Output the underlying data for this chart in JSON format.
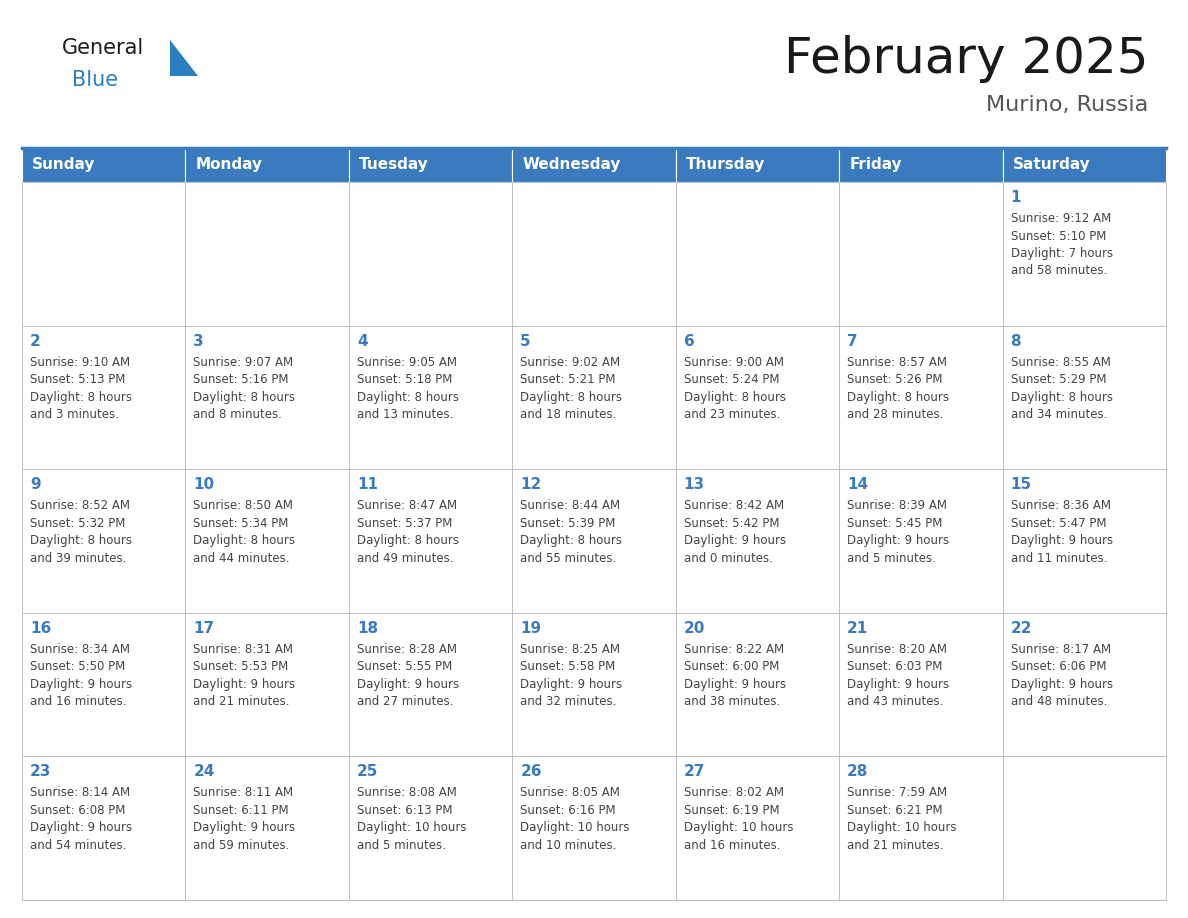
{
  "title": "February 2025",
  "subtitle": "Murino, Russia",
  "days_of_week": [
    "Sunday",
    "Monday",
    "Tuesday",
    "Wednesday",
    "Thursday",
    "Friday",
    "Saturday"
  ],
  "header_bg": "#3a7abf",
  "header_text": "#ffffff",
  "cell_bg": "#ffffff",
  "day_num_color": "#3a7abf",
  "text_color": "#444444",
  "border_color": "#bbbbbb",
  "title_color": "#1a1a1a",
  "subtitle_color": "#555555",
  "logo_general_color": "#1a1a1a",
  "logo_blue_color": "#2a7fc0",
  "calendar_data": [
    [
      {
        "day": null,
        "info": ""
      },
      {
        "day": null,
        "info": ""
      },
      {
        "day": null,
        "info": ""
      },
      {
        "day": null,
        "info": ""
      },
      {
        "day": null,
        "info": ""
      },
      {
        "day": null,
        "info": ""
      },
      {
        "day": 1,
        "info": "Sunrise: 9:12 AM\nSunset: 5:10 PM\nDaylight: 7 hours\nand 58 minutes."
      }
    ],
    [
      {
        "day": 2,
        "info": "Sunrise: 9:10 AM\nSunset: 5:13 PM\nDaylight: 8 hours\nand 3 minutes."
      },
      {
        "day": 3,
        "info": "Sunrise: 9:07 AM\nSunset: 5:16 PM\nDaylight: 8 hours\nand 8 minutes."
      },
      {
        "day": 4,
        "info": "Sunrise: 9:05 AM\nSunset: 5:18 PM\nDaylight: 8 hours\nand 13 minutes."
      },
      {
        "day": 5,
        "info": "Sunrise: 9:02 AM\nSunset: 5:21 PM\nDaylight: 8 hours\nand 18 minutes."
      },
      {
        "day": 6,
        "info": "Sunrise: 9:00 AM\nSunset: 5:24 PM\nDaylight: 8 hours\nand 23 minutes."
      },
      {
        "day": 7,
        "info": "Sunrise: 8:57 AM\nSunset: 5:26 PM\nDaylight: 8 hours\nand 28 minutes."
      },
      {
        "day": 8,
        "info": "Sunrise: 8:55 AM\nSunset: 5:29 PM\nDaylight: 8 hours\nand 34 minutes."
      }
    ],
    [
      {
        "day": 9,
        "info": "Sunrise: 8:52 AM\nSunset: 5:32 PM\nDaylight: 8 hours\nand 39 minutes."
      },
      {
        "day": 10,
        "info": "Sunrise: 8:50 AM\nSunset: 5:34 PM\nDaylight: 8 hours\nand 44 minutes."
      },
      {
        "day": 11,
        "info": "Sunrise: 8:47 AM\nSunset: 5:37 PM\nDaylight: 8 hours\nand 49 minutes."
      },
      {
        "day": 12,
        "info": "Sunrise: 8:44 AM\nSunset: 5:39 PM\nDaylight: 8 hours\nand 55 minutes."
      },
      {
        "day": 13,
        "info": "Sunrise: 8:42 AM\nSunset: 5:42 PM\nDaylight: 9 hours\nand 0 minutes."
      },
      {
        "day": 14,
        "info": "Sunrise: 8:39 AM\nSunset: 5:45 PM\nDaylight: 9 hours\nand 5 minutes."
      },
      {
        "day": 15,
        "info": "Sunrise: 8:36 AM\nSunset: 5:47 PM\nDaylight: 9 hours\nand 11 minutes."
      }
    ],
    [
      {
        "day": 16,
        "info": "Sunrise: 8:34 AM\nSunset: 5:50 PM\nDaylight: 9 hours\nand 16 minutes."
      },
      {
        "day": 17,
        "info": "Sunrise: 8:31 AM\nSunset: 5:53 PM\nDaylight: 9 hours\nand 21 minutes."
      },
      {
        "day": 18,
        "info": "Sunrise: 8:28 AM\nSunset: 5:55 PM\nDaylight: 9 hours\nand 27 minutes."
      },
      {
        "day": 19,
        "info": "Sunrise: 8:25 AM\nSunset: 5:58 PM\nDaylight: 9 hours\nand 32 minutes."
      },
      {
        "day": 20,
        "info": "Sunrise: 8:22 AM\nSunset: 6:00 PM\nDaylight: 9 hours\nand 38 minutes."
      },
      {
        "day": 21,
        "info": "Sunrise: 8:20 AM\nSunset: 6:03 PM\nDaylight: 9 hours\nand 43 minutes."
      },
      {
        "day": 22,
        "info": "Sunrise: 8:17 AM\nSunset: 6:06 PM\nDaylight: 9 hours\nand 48 minutes."
      }
    ],
    [
      {
        "day": 23,
        "info": "Sunrise: 8:14 AM\nSunset: 6:08 PM\nDaylight: 9 hours\nand 54 minutes."
      },
      {
        "day": 24,
        "info": "Sunrise: 8:11 AM\nSunset: 6:11 PM\nDaylight: 9 hours\nand 59 minutes."
      },
      {
        "day": 25,
        "info": "Sunrise: 8:08 AM\nSunset: 6:13 PM\nDaylight: 10 hours\nand 5 minutes."
      },
      {
        "day": 26,
        "info": "Sunrise: 8:05 AM\nSunset: 6:16 PM\nDaylight: 10 hours\nand 10 minutes."
      },
      {
        "day": 27,
        "info": "Sunrise: 8:02 AM\nSunset: 6:19 PM\nDaylight: 10 hours\nand 16 minutes."
      },
      {
        "day": 28,
        "info": "Sunrise: 7:59 AM\nSunset: 6:21 PM\nDaylight: 10 hours\nand 21 minutes."
      },
      {
        "day": null,
        "info": ""
      }
    ]
  ]
}
